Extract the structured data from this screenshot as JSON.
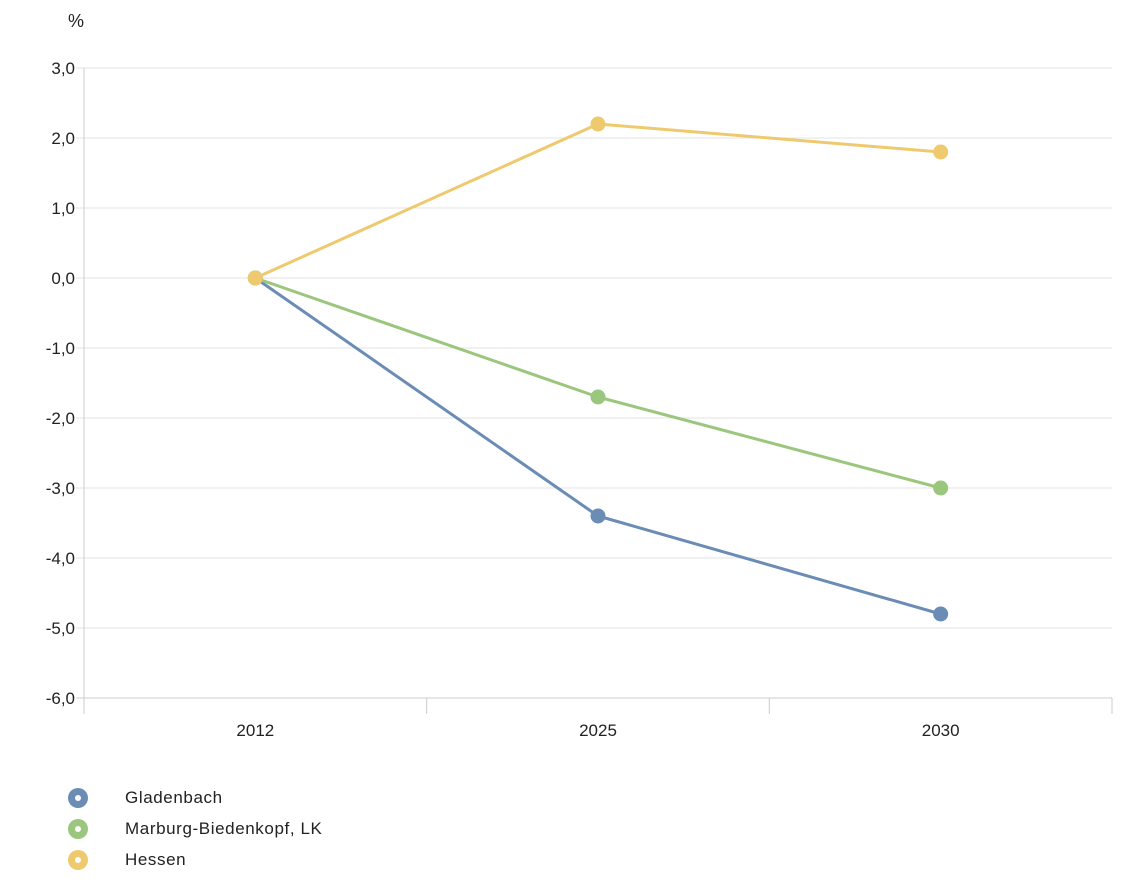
{
  "chart_data": {
    "type": "line",
    "title": "",
    "ylabel": "%",
    "xlabel": "",
    "categories": [
      "2012",
      "2025",
      "2030"
    ],
    "ylim": [
      -6,
      3
    ],
    "yticks": [
      "3,0",
      "2,0",
      "1,0",
      "0,0",
      "-1,0",
      "-2,0",
      "-3,0",
      "-4,0",
      "-5,0",
      "-6,0"
    ],
    "grid": true,
    "legend_position": "bottom-left",
    "series": [
      {
        "name": "Gladenbach",
        "color": "#6b8cb5",
        "values": [
          0,
          -3.4,
          -4.8
        ]
      },
      {
        "name": "Marburg-Biedenkopf, LK",
        "color": "#9bc67d",
        "values": [
          0,
          -1.7,
          -3.0
        ]
      },
      {
        "name": "Hessen",
        "color": "#efc96e",
        "values": [
          0,
          2.2,
          1.8
        ]
      }
    ]
  }
}
